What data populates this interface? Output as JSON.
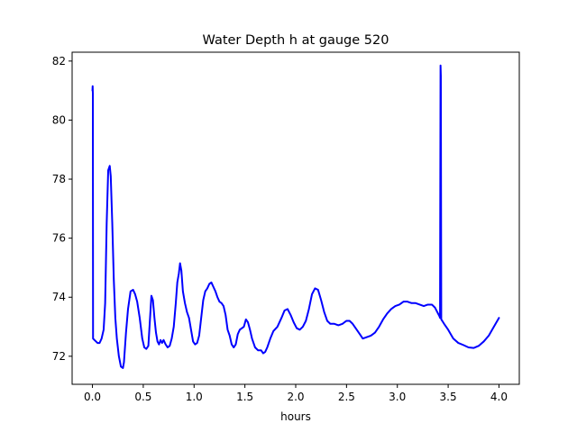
{
  "chart_data": {
    "type": "line",
    "title": "Water Depth h at gauge 520",
    "xlabel": "hours",
    "ylabel": "",
    "xlim": [
      -0.2,
      4.2
    ],
    "ylim": [
      71.05,
      82.3
    ],
    "xticks": [
      0.0,
      0.5,
      1.0,
      1.5,
      2.0,
      2.5,
      3.0,
      3.5,
      4.0
    ],
    "xtick_labels": [
      "0.0",
      "0.5",
      "1.0",
      "1.5",
      "2.0",
      "2.5",
      "3.0",
      "3.5",
      "4.0"
    ],
    "yticks": [
      72,
      74,
      76,
      78,
      80,
      82
    ],
    "ytick_labels": [
      "72",
      "74",
      "76",
      "78",
      "80",
      "82"
    ],
    "grid": false,
    "series": [
      {
        "color": "#0000ff",
        "points": [
          [
            0.0,
            81.0
          ],
          [
            0.002,
            81.15
          ],
          [
            0.004,
            80.9
          ],
          [
            0.006,
            72.6
          ],
          [
            0.02,
            72.55
          ],
          [
            0.05,
            72.45
          ],
          [
            0.07,
            72.45
          ],
          [
            0.09,
            72.6
          ],
          [
            0.11,
            72.9
          ],
          [
            0.125,
            73.8
          ],
          [
            0.14,
            76.5
          ],
          [
            0.155,
            78.3
          ],
          [
            0.17,
            78.45
          ],
          [
            0.18,
            78.1
          ],
          [
            0.195,
            76.5
          ],
          [
            0.21,
            74.6
          ],
          [
            0.225,
            73.3
          ],
          [
            0.24,
            72.6
          ],
          [
            0.26,
            72.0
          ],
          [
            0.28,
            71.65
          ],
          [
            0.3,
            71.6
          ],
          [
            0.31,
            71.8
          ],
          [
            0.33,
            72.8
          ],
          [
            0.35,
            73.6
          ],
          [
            0.375,
            74.2
          ],
          [
            0.4,
            74.25
          ],
          [
            0.42,
            74.1
          ],
          [
            0.44,
            73.85
          ],
          [
            0.465,
            73.3
          ],
          [
            0.49,
            72.6
          ],
          [
            0.51,
            72.3
          ],
          [
            0.53,
            72.25
          ],
          [
            0.55,
            72.35
          ],
          [
            0.565,
            73.2
          ],
          [
            0.58,
            74.05
          ],
          [
            0.595,
            73.9
          ],
          [
            0.61,
            73.3
          ],
          [
            0.625,
            72.8
          ],
          [
            0.64,
            72.5
          ],
          [
            0.655,
            72.4
          ],
          [
            0.67,
            72.55
          ],
          [
            0.685,
            72.45
          ],
          [
            0.7,
            72.55
          ],
          [
            0.72,
            72.4
          ],
          [
            0.74,
            72.3
          ],
          [
            0.76,
            72.35
          ],
          [
            0.78,
            72.6
          ],
          [
            0.8,
            73.0
          ],
          [
            0.82,
            73.8
          ],
          [
            0.835,
            74.5
          ],
          [
            0.85,
            74.8
          ],
          [
            0.862,
            75.15
          ],
          [
            0.875,
            74.9
          ],
          [
            0.89,
            74.2
          ],
          [
            0.91,
            73.8
          ],
          [
            0.93,
            73.5
          ],
          [
            0.95,
            73.3
          ],
          [
            0.97,
            72.9
          ],
          [
            0.99,
            72.5
          ],
          [
            1.01,
            72.4
          ],
          [
            1.03,
            72.45
          ],
          [
            1.05,
            72.7
          ],
          [
            1.07,
            73.3
          ],
          [
            1.09,
            73.9
          ],
          [
            1.11,
            74.2
          ],
          [
            1.13,
            74.3
          ],
          [
            1.15,
            74.45
          ],
          [
            1.17,
            74.5
          ],
          [
            1.19,
            74.35
          ],
          [
            1.21,
            74.2
          ],
          [
            1.23,
            74.0
          ],
          [
            1.25,
            73.85
          ],
          [
            1.27,
            73.8
          ],
          [
            1.29,
            73.7
          ],
          [
            1.31,
            73.4
          ],
          [
            1.33,
            72.9
          ],
          [
            1.35,
            72.7
          ],
          [
            1.37,
            72.4
          ],
          [
            1.39,
            72.3
          ],
          [
            1.41,
            72.4
          ],
          [
            1.43,
            72.75
          ],
          [
            1.45,
            72.9
          ],
          [
            1.47,
            72.95
          ],
          [
            1.49,
            73.0
          ],
          [
            1.51,
            73.25
          ],
          [
            1.53,
            73.15
          ],
          [
            1.55,
            72.9
          ],
          [
            1.57,
            72.6
          ],
          [
            1.6,
            72.3
          ],
          [
            1.63,
            72.2
          ],
          [
            1.66,
            72.2
          ],
          [
            1.68,
            72.1
          ],
          [
            1.7,
            72.15
          ],
          [
            1.72,
            72.3
          ],
          [
            1.75,
            72.6
          ],
          [
            1.78,
            72.85
          ],
          [
            1.82,
            73.0
          ],
          [
            1.86,
            73.3
          ],
          [
            1.89,
            73.55
          ],
          [
            1.92,
            73.6
          ],
          [
            1.95,
            73.4
          ],
          [
            1.98,
            73.15
          ],
          [
            2.01,
            72.95
          ],
          [
            2.04,
            72.9
          ],
          [
            2.07,
            73.0
          ],
          [
            2.1,
            73.2
          ],
          [
            2.13,
            73.6
          ],
          [
            2.16,
            74.1
          ],
          [
            2.19,
            74.3
          ],
          [
            2.22,
            74.25
          ],
          [
            2.25,
            73.9
          ],
          [
            2.28,
            73.5
          ],
          [
            2.31,
            73.2
          ],
          [
            2.34,
            73.1
          ],
          [
            2.38,
            73.1
          ],
          [
            2.42,
            73.05
          ],
          [
            2.46,
            73.1
          ],
          [
            2.5,
            73.2
          ],
          [
            2.53,
            73.2
          ],
          [
            2.56,
            73.1
          ],
          [
            2.6,
            72.9
          ],
          [
            2.63,
            72.75
          ],
          [
            2.66,
            72.6
          ],
          [
            2.7,
            72.65
          ],
          [
            2.74,
            72.7
          ],
          [
            2.78,
            72.8
          ],
          [
            2.82,
            73.0
          ],
          [
            2.86,
            73.25
          ],
          [
            2.9,
            73.45
          ],
          [
            2.94,
            73.6
          ],
          [
            2.98,
            73.7
          ],
          [
            3.02,
            73.75
          ],
          [
            3.06,
            73.85
          ],
          [
            3.1,
            73.85
          ],
          [
            3.14,
            73.8
          ],
          [
            3.18,
            73.8
          ],
          [
            3.22,
            73.75
          ],
          [
            3.26,
            73.7
          ],
          [
            3.3,
            73.75
          ],
          [
            3.34,
            73.75
          ],
          [
            3.37,
            73.65
          ],
          [
            3.4,
            73.45
          ],
          [
            3.415,
            73.35
          ],
          [
            3.42,
            73.3
          ],
          [
            3.425,
            81.85
          ],
          [
            3.428,
            81.5
          ],
          [
            3.432,
            73.25
          ],
          [
            3.46,
            73.1
          ],
          [
            3.5,
            72.9
          ],
          [
            3.55,
            72.6
          ],
          [
            3.6,
            72.45
          ],
          [
            3.65,
            72.38
          ],
          [
            3.7,
            72.3
          ],
          [
            3.75,
            72.28
          ],
          [
            3.8,
            72.35
          ],
          [
            3.85,
            72.5
          ],
          [
            3.9,
            72.7
          ],
          [
            3.95,
            73.0
          ],
          [
            4.0,
            73.3
          ]
        ]
      }
    ]
  }
}
